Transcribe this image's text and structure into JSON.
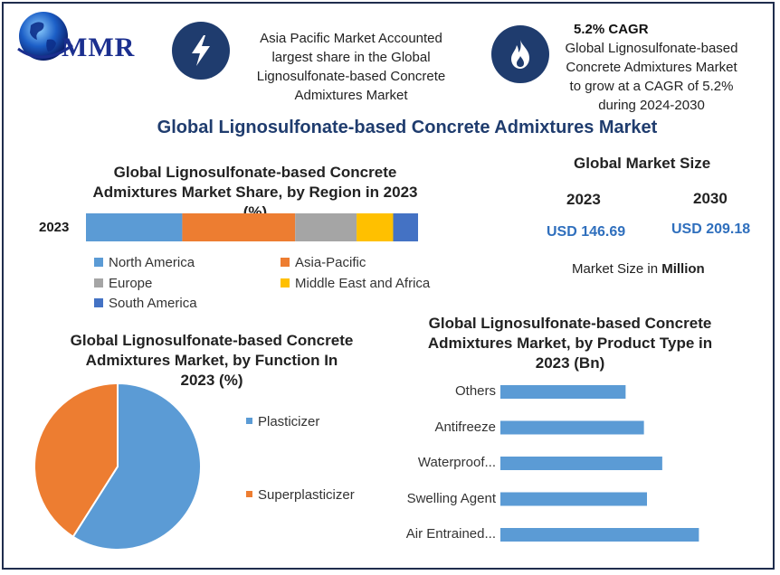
{
  "brand": {
    "logo_text": "MMR",
    "logo_icon": "globe-icon"
  },
  "header": {
    "left_icon": "lightning-icon",
    "left_text": [
      "Asia Pacific Market Accounted",
      "largest share in the Global",
      "Lignosulfonate-based Concrete",
      "Admixtures Market"
    ],
    "right_icon": "flame-icon",
    "right_title": "5.2% CAGR",
    "right_text": [
      "Global Lignosulfonate-based",
      "Concrete Admixtures Market",
      "to grow at a CAGR of 5.2%",
      "during 2024-2030"
    ]
  },
  "main_title": "Global Lignosulfonate-based Concrete Admixtures Market",
  "market_size": {
    "title": "Global Market Size",
    "years": [
      "2023",
      "2030"
    ],
    "values": [
      "USD 146.69",
      "USD 209.18"
    ],
    "note_prefix": "Market Size in ",
    "note_bold": "Million"
  },
  "colors": {
    "north_america": "#5b9bd5",
    "asia_pacific": "#ed7d31",
    "europe": "#a5a5a5",
    "mea": "#ffc000",
    "south_america": "#4472c4",
    "accent": "#1f3c6e"
  },
  "chart_data": [
    {
      "type": "bar",
      "orientation": "horizontal-stacked",
      "title": [
        "Global Lignosulfonate-based Concrete",
        "Admixtures Market Share, by Region in 2023",
        "(%)"
      ],
      "categories": [
        "2023"
      ],
      "series": [
        {
          "name": "North America",
          "values": [
            29
          ],
          "color": "#5b9bd5"
        },
        {
          "name": "Asia-Pacific",
          "values": [
            34
          ],
          "color": "#ed7d31"
        },
        {
          "name": "Europe",
          "values": [
            18.5
          ],
          "color": "#a5a5a5"
        },
        {
          "name": "Middle East and Africa",
          "values": [
            11
          ],
          "color": "#ffc000"
        },
        {
          "name": "South America",
          "values": [
            7.5
          ],
          "color": "#4472c4"
        }
      ],
      "xlim": [
        0,
        100
      ],
      "legend": "bottom"
    },
    {
      "type": "pie",
      "title": [
        "Global Lignosulfonate-based Concrete",
        "Admixtures Market, by Function In",
        "2023 (%)"
      ],
      "labels": [
        "Plasticizer",
        "Superplasticizer"
      ],
      "values": [
        59,
        41
      ],
      "colors": [
        "#5b9bd5",
        "#ed7d31"
      ],
      "legend": "right"
    },
    {
      "type": "bar",
      "orientation": "horizontal",
      "title": [
        "Global Lignosulfonate-based Concrete",
        "Admixtures Market, by Product Type in",
        "2023 (Bn)"
      ],
      "categories": [
        "Others",
        "Antifreeze",
        "Waterproof...",
        "Swelling Agent",
        "Air Entrained..."
      ],
      "values": [
        20.5,
        23.5,
        26.5,
        24,
        32.5
      ],
      "xlim": [
        0,
        40
      ],
      "color": "#5b9bd5"
    }
  ]
}
